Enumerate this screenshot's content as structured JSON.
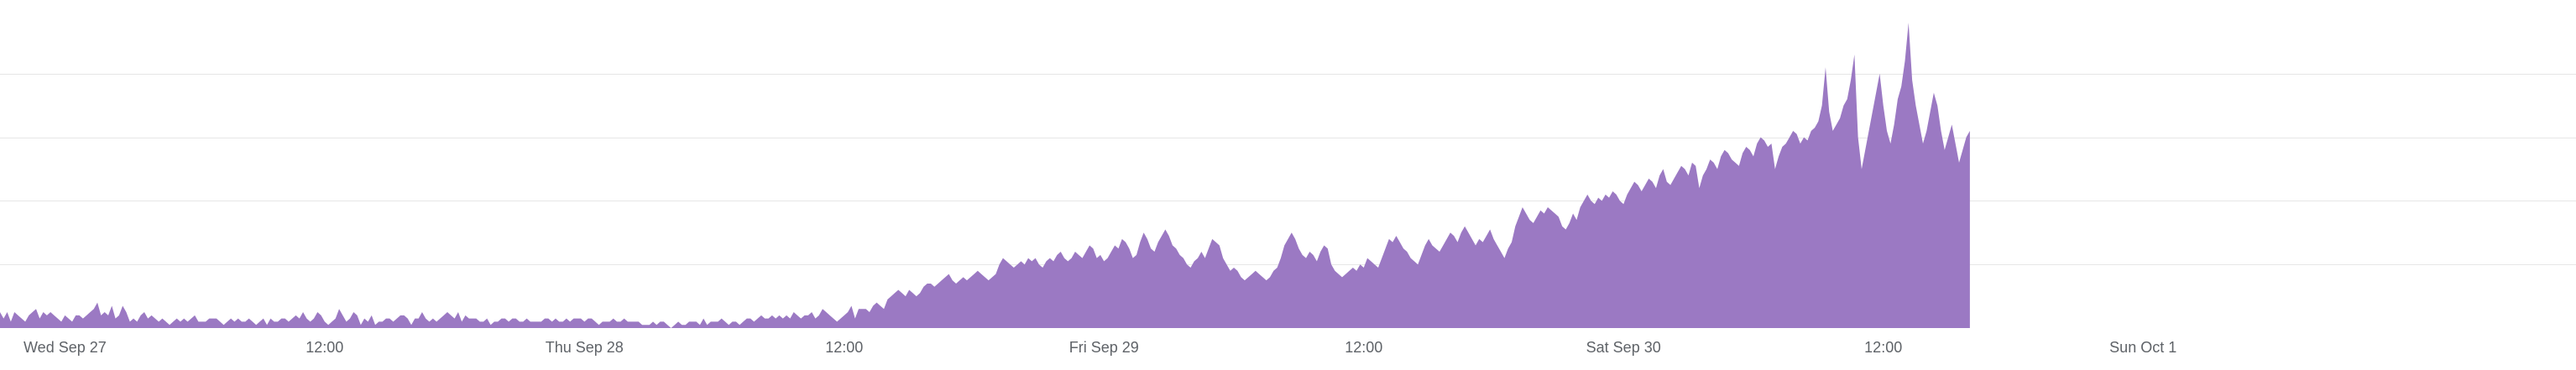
{
  "chart_data": {
    "type": "area",
    "title": "",
    "xlabel": "",
    "ylabel": "",
    "grid": true,
    "legend": "none",
    "colors": {
      "area": "#9b79c3",
      "grid": "#e6e6e6",
      "axis_text": "#5f6368"
    },
    "x_ticks": [
      "Wed Sep 27",
      "12:00",
      "Thu Sep 28",
      "12:00",
      "Fri Sep 29",
      "12:00",
      "Sat Sep 30",
      "12:00",
      "Sun Oct 1"
    ],
    "x_range": [
      "2023-09-26T21:00",
      "2023-10-01T20:00"
    ],
    "y_range": [
      0,
      100
    ],
    "y_gridlines": [
      20,
      40,
      60,
      80
    ],
    "series": [
      {
        "x_start": "2023-09-26T21:00",
        "step_minutes": 10,
        "values": [
          5,
          3,
          5,
          2,
          5,
          4,
          3,
          2,
          4,
          5,
          6,
          3,
          5,
          4,
          5,
          4,
          3,
          2,
          4,
          3,
          2,
          4,
          4,
          3,
          4,
          5,
          6,
          8,
          4,
          5,
          4,
          7,
          3,
          4,
          7,
          5,
          2,
          3,
          2,
          4,
          5,
          3,
          4,
          3,
          2,
          3,
          2,
          1,
          2,
          3,
          2,
          3,
          2,
          3,
          4,
          2,
          2,
          2,
          3,
          3,
          3,
          2,
          1,
          2,
          3,
          2,
          3,
          2,
          2,
          3,
          2,
          1,
          2,
          3,
          1,
          3,
          2,
          2,
          3,
          3,
          2,
          3,
          4,
          3,
          5,
          3,
          2,
          3,
          5,
          4,
          2,
          1,
          2,
          3,
          6,
          4,
          2,
          3,
          5,
          4,
          1,
          3,
          2,
          4,
          1,
          2,
          2,
          3,
          3,
          2,
          3,
          4,
          4,
          3,
          1,
          3,
          3,
          5,
          3,
          2,
          3,
          2,
          3,
          4,
          5,
          4,
          3,
          5,
          2,
          4,
          3,
          3,
          3,
          2,
          2,
          3,
          1,
          2,
          2,
          3,
          3,
          2,
          3,
          3,
          2,
          2,
          3,
          2,
          2,
          2,
          2,
          3,
          3,
          2,
          3,
          2,
          2,
          3,
          2,
          3,
          3,
          3,
          2,
          3,
          3,
          2,
          1,
          2,
          2,
          2,
          3,
          2,
          2,
          3,
          2,
          2,
          2,
          2,
          1,
          1,
          1,
          2,
          1,
          2,
          2,
          1,
          0,
          1,
          2,
          1,
          1,
          2,
          2,
          2,
          1,
          3,
          1,
          2,
          2,
          2,
          3,
          2,
          1,
          2,
          2,
          1,
          2,
          3,
          3,
          2,
          3,
          4,
          3,
          3,
          4,
          3,
          4,
          3,
          4,
          3,
          5,
          4,
          3,
          4,
          4,
          5,
          3,
          4,
          6,
          5,
          4,
          3,
          2,
          3,
          4,
          5,
          7,
          3,
          6,
          6,
          6,
          5,
          7,
          8,
          7,
          6,
          9,
          10,
          11,
          12,
          11,
          10,
          12,
          11,
          10,
          11,
          13,
          14,
          14,
          13,
          14,
          15,
          16,
          17,
          15,
          14,
          15,
          16,
          15,
          16,
          17,
          18,
          17,
          16,
          15,
          16,
          17,
          20,
          22,
          21,
          20,
          19,
          20,
          21,
          20,
          22,
          21,
          22,
          20,
          19,
          21,
          22,
          21,
          23,
          24,
          22,
          21,
          22,
          24,
          23,
          22,
          24,
          26,
          25,
          22,
          23,
          21,
          22,
          24,
          26,
          25,
          28,
          27,
          25,
          22,
          23,
          27,
          30,
          28,
          25,
          24,
          27,
          29,
          31,
          29,
          26,
          25,
          23,
          22,
          20,
          19,
          21,
          22,
          24,
          22,
          25,
          28,
          27,
          26,
          22,
          20,
          18,
          19,
          18,
          16,
          15,
          16,
          17,
          18,
          17,
          16,
          15,
          16,
          18,
          19,
          22,
          26,
          28,
          30,
          28,
          25,
          23,
          22,
          24,
          23,
          21,
          24,
          26,
          25,
          20,
          18,
          17,
          16,
          17,
          18,
          19,
          18,
          20,
          19,
          22,
          21,
          20,
          19,
          22,
          25,
          28,
          27,
          29,
          27,
          25,
          24,
          22,
          21,
          20,
          23,
          26,
          28,
          26,
          25,
          24,
          26,
          28,
          30,
          29,
          27,
          30,
          32,
          30,
          28,
          26,
          28,
          27,
          29,
          31,
          28,
          26,
          24,
          22,
          25,
          27,
          32,
          35,
          38,
          36,
          34,
          33,
          35,
          37,
          36,
          38,
          37,
          36,
          35,
          32,
          31,
          33,
          36,
          34,
          38,
          40,
          42,
          40,
          39,
          41,
          40,
          42,
          41,
          43,
          42,
          40,
          39,
          42,
          44,
          46,
          45,
          43,
          45,
          47,
          46,
          44,
          48,
          50,
          46,
          45,
          47,
          49,
          51,
          50,
          48,
          52,
          51,
          44,
          48,
          50,
          53,
          52,
          50,
          54,
          56,
          55,
          53,
          52,
          51,
          55,
          57,
          56,
          54,
          58,
          60,
          59,
          57,
          58,
          50,
          54,
          57,
          58,
          60,
          62,
          61,
          58,
          60,
          59,
          62,
          63,
          65,
          70,
          82,
          68,
          62,
          64,
          66,
          70,
          72,
          78,
          86,
          60,
          50,
          56,
          62,
          68,
          74,
          80,
          70,
          62,
          58,
          64,
          72,
          76,
          84,
          96,
          78,
          70,
          64,
          58,
          62,
          68,
          74,
          70,
          62,
          56,
          60,
          64,
          58,
          52,
          56,
          60,
          62
        ]
      }
    ]
  }
}
